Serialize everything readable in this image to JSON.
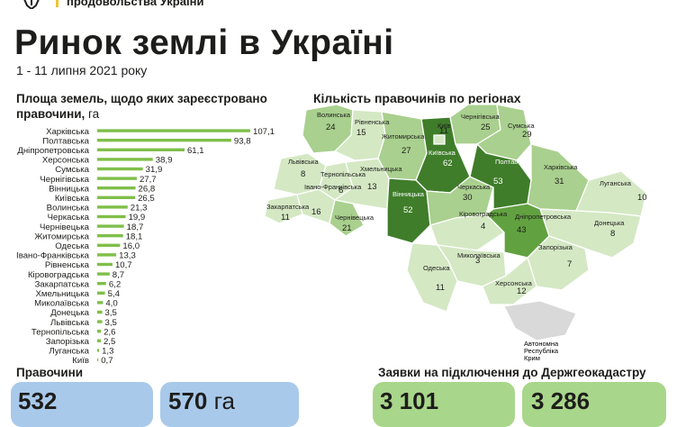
{
  "header": {
    "org_line": "продовольства України",
    "title": "Ринок землі в Україні",
    "date": "1 - 11 липня 2021 року"
  },
  "bar_section": {
    "title_line1": "Площа земель, щодо яких зареєстровано",
    "title_line2": "правочини,",
    "unit": "га"
  },
  "map_section": {
    "title": "Кількість правочинів по регіонах",
    "crimea_label_lines": [
      "Автономна",
      "Республіка",
      "Крим"
    ]
  },
  "bottom": {
    "left_title": "Правочини",
    "right_title": "Заявки на підключення до Держгеокадастру",
    "cards": [
      {
        "value": "532",
        "unit": ""
      },
      {
        "value": "570",
        "unit": "га"
      },
      {
        "value": "3 101",
        "unit": ""
      },
      {
        "value": "3 286",
        "unit": ""
      }
    ]
  },
  "colors": {
    "bar": "#7fbf4a",
    "card_blue": "#a9c9ea",
    "card_green": "#a8d68a",
    "map_light": "#d4e8c4",
    "map_mid": "#a9d08e",
    "map_dark": "#62a140",
    "map_darkest": "#3f7d2a",
    "crimea": "#d9d9d9"
  },
  "chart_data": [
    {
      "type": "bar",
      "orientation": "horizontal",
      "title": "Площа земель, щодо яких зареєстровано правочини, га",
      "categories": [
        "Харківська",
        "Полтавська",
        "Дніпропетровська",
        "Херсонська",
        "Сумська",
        "Чернігівська",
        "Вінницька",
        "Київська",
        "Волинська",
        "Черкаська",
        "Чернівецька",
        "Житомирська",
        "Одеська",
        "Івано-Франківська",
        "Рівненська",
        "Кіровоградська",
        "Закарпатська",
        "Хмельницька",
        "Миколаївська",
        "Донецька",
        "Львівська",
        "Тернопільська",
        "Запорізька",
        "Луганська",
        "Київ"
      ],
      "values": [
        107.1,
        93.8,
        61.1,
        38.9,
        31.9,
        27.7,
        26.8,
        26.5,
        21.3,
        19.9,
        18.7,
        18.1,
        16.0,
        13.3,
        10.7,
        8.7,
        6.2,
        5.4,
        4.0,
        3.5,
        3.5,
        2.6,
        2.5,
        1.3,
        0.7
      ],
      "value_labels": [
        "107,1",
        "93,8",
        "61,1",
        "38,9",
        "31,9",
        "27,7",
        "26,8",
        "26,5",
        "21,3",
        "19,9",
        "18,7",
        "18,1",
        "16,0",
        "13,3",
        "10,7",
        "8,7",
        "6,2",
        "5,4",
        "4,0",
        "3,5",
        "3,5",
        "2,6",
        "2,5",
        "1,3",
        "0,7"
      ],
      "xlim": [
        0,
        107.1
      ]
    },
    {
      "type": "choropleth",
      "title": "Кількість правочинів по регіонах",
      "regions": [
        {
          "name": "Волинська",
          "value": 24
        },
        {
          "name": "Рівненська",
          "value": 15
        },
        {
          "name": "Житомирська",
          "value": 27
        },
        {
          "name": "Київ",
          "value": 11
        },
        {
          "name": "Київська",
          "value": 62
        },
        {
          "name": "Чернігівська",
          "value": 25
        },
        {
          "name": "Сумська",
          "value": 29
        },
        {
          "name": "Львівська",
          "value": 8
        },
        {
          "name": "Тернопільська",
          "value": 6
        },
        {
          "name": "Хмельницька",
          "value": 13
        },
        {
          "name": "Вінницька",
          "value": 52
        },
        {
          "name": "Черкаська",
          "value": 30
        },
        {
          "name": "Полтавська",
          "value": 53
        },
        {
          "name": "Харківська",
          "value": 31
        },
        {
          "name": "Луганська",
          "value": 10
        },
        {
          "name": "Закарпатська",
          "value": 11
        },
        {
          "name": "Івано-Франківська",
          "value": 16
        },
        {
          "name": "Чернівецька",
          "value": 21
        },
        {
          "name": "Кіровоградська",
          "value": 4
        },
        {
          "name": "Дніпропетровська",
          "value": 43
        },
        {
          "name": "Донецька",
          "value": 8
        },
        {
          "name": "Запорізька",
          "value": 7
        },
        {
          "name": "Миколаївська",
          "value": 3
        },
        {
          "name": "Одеська",
          "value": 11
        },
        {
          "name": "Херсонська",
          "value": 12
        }
      ]
    }
  ]
}
